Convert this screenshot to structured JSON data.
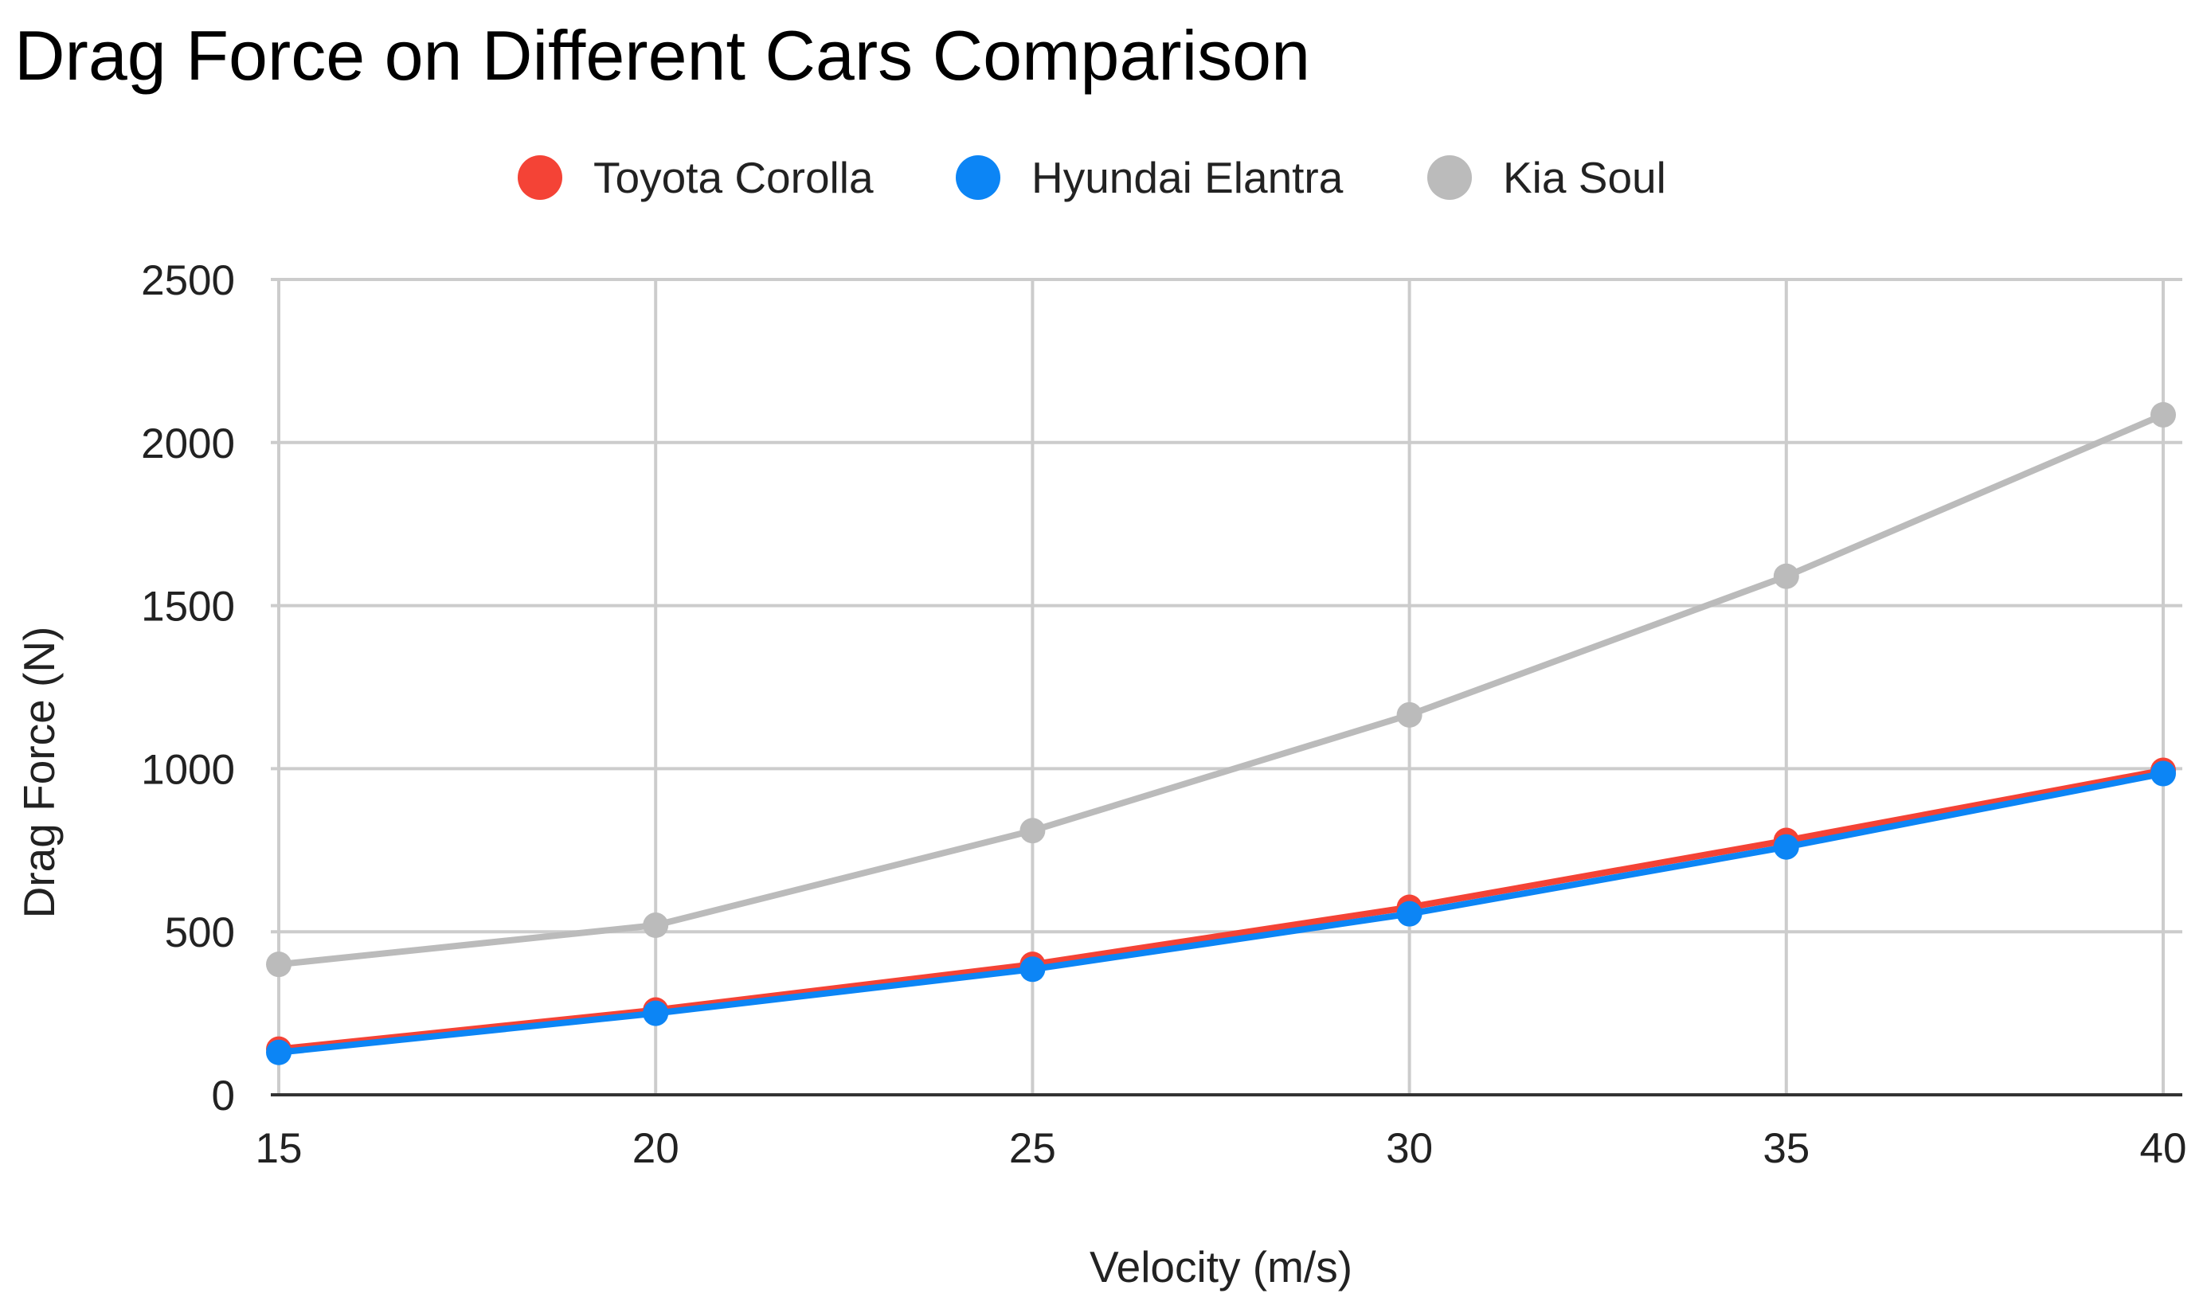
{
  "chart_data": {
    "type": "line",
    "title": "Drag Force on Different Cars Comparison",
    "xlabel": "Velocity (m/s)",
    "ylabel": "Drag Force (N)",
    "x": [
      15,
      20,
      25,
      30,
      35,
      40
    ],
    "x_tick_labels": [
      "15",
      "20",
      "25",
      "30",
      "35",
      "40"
    ],
    "y_tick_labels": [
      "0",
      "500",
      "1000",
      "1500",
      "2000",
      "2500"
    ],
    "y_ticks": [
      0,
      500,
      1000,
      1500,
      2000,
      2500
    ],
    "xlim": [
      15,
      40
    ],
    "ylim": [
      0,
      2500
    ],
    "grid": true,
    "legend_position": "top",
    "series": [
      {
        "name": "Toyota Corolla",
        "color": "#f44336",
        "values": [
          140,
          260,
          400,
          575,
          780,
          995
        ]
      },
      {
        "name": "Hyundai Elantra",
        "color": "#0c85f5",
        "values": [
          130,
          250,
          385,
          555,
          760,
          985
        ]
      },
      {
        "name": "Kia Soul",
        "color": "#bbbbbb",
        "values": [
          400,
          520,
          810,
          1165,
          1590,
          2085
        ]
      }
    ]
  }
}
